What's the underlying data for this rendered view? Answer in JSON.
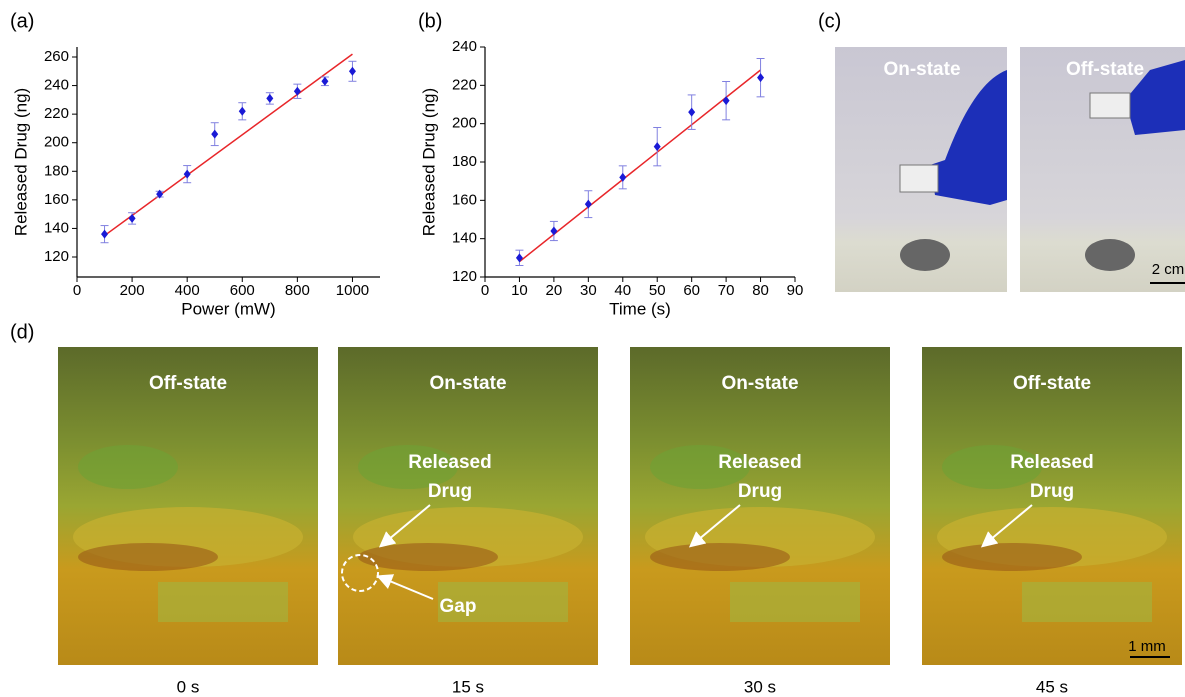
{
  "chart_data": [
    {
      "type": "scatter",
      "panel": "(a)",
      "x_label": "Power (mW)",
      "y_label": "Released Drug (ng)",
      "x": [
        100,
        200,
        300,
        400,
        500,
        600,
        700,
        800,
        900,
        1000
      ],
      "values": [
        136,
        147,
        164,
        178,
        206,
        222,
        231,
        236,
        243,
        250
      ],
      "errors": [
        6,
        4,
        2,
        6,
        8,
        6,
        4,
        5,
        3,
        7
      ],
      "color": "#1a1ad6",
      "fit": {
        "x": [
          100,
          1000
        ],
        "values": [
          135,
          262
        ],
        "color": "#e8262a"
      },
      "xlim": [
        0,
        1100
      ],
      "xticks": [
        0,
        200,
        400,
        600,
        800,
        1000
      ],
      "ylim": [
        106,
        267
      ],
      "yticks": [
        120,
        140,
        160,
        180,
        200,
        220,
        240,
        260
      ]
    },
    {
      "type": "scatter",
      "panel": "(b)",
      "x_label": "Time (s)",
      "y_label": "Released Drug (ng)",
      "x": [
        10,
        20,
        30,
        40,
        50,
        60,
        70,
        80
      ],
      "values": [
        130,
        144,
        158,
        172,
        188,
        206,
        212,
        224
      ],
      "errors": [
        4,
        5,
        7,
        6,
        10,
        9,
        10,
        10
      ],
      "color": "#1a1ad6",
      "fit": {
        "x": [
          10,
          80
        ],
        "values": [
          128,
          228
        ],
        "color": "#e8262a"
      },
      "xlim": [
        0,
        90
      ],
      "xticks": [
        0,
        10,
        20,
        30,
        40,
        50,
        60,
        70,
        80,
        90
      ],
      "ylim": [
        120,
        240
      ],
      "yticks": [
        120,
        140,
        160,
        180,
        200,
        220,
        240
      ]
    }
  ],
  "panels": {
    "c": {
      "label": "(c)",
      "left": "On-state",
      "right": "Off-state",
      "scale": "2 cm"
    },
    "d": {
      "label": "(d)",
      "scale": "1 mm",
      "annotation": [
        "Released",
        "Drug"
      ],
      "gap": "Gap",
      "frames": [
        {
          "state": "Off-state",
          "time": "0 s"
        },
        {
          "state": "On-state",
          "time": "15 s"
        },
        {
          "state": "On-state",
          "time": "30 s"
        },
        {
          "state": "Off-state",
          "time": "45 s"
        }
      ]
    }
  }
}
